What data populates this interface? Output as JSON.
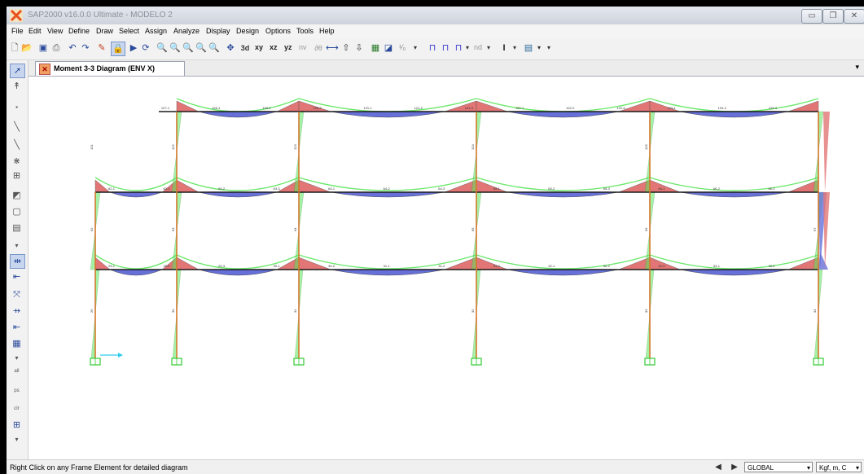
{
  "window": {
    "title": "SAP2000 v16.0.0 Ultimate  - MODELO 2",
    "controls": {
      "minimize": "▭",
      "restore": "❐",
      "close": "✕"
    }
  },
  "menu": [
    "File",
    "Edit",
    "View",
    "Define",
    "Draw",
    "Select",
    "Assign",
    "Analyze",
    "Display",
    "Design",
    "Options",
    "Tools",
    "Help"
  ],
  "toolbar": {
    "view_xy": "xy",
    "view_xz": "xz",
    "view_yz": "yz",
    "view_nv": "nv",
    "fraction": "¹⁄₀",
    "nd": "nd"
  },
  "tab": {
    "label": "Moment 3-3 Diagram  (ENV X)"
  },
  "status": {
    "message": "Right Click on any Frame Element for detailed diagram",
    "coord_system": "GLOBAL",
    "units": "Kgf, m, C"
  },
  "colors": {
    "positive_moment": "#6670d8",
    "negative_moment": "#e27575",
    "envelope_outline": "#5ce65c",
    "frame": "#1a1a1a",
    "column": "#d4782c",
    "support": "#33cc33"
  },
  "diagram": {
    "roof_beam_labels": [
      "127-1",
      "128-1",
      "128-2",
      "128-3",
      "121-1",
      "121-2",
      "121-3",
      "122-1",
      "122-2",
      "122-3",
      "123-1",
      "123-2",
      "123-3"
    ],
    "floor2_beam_labels": [
      "62-1",
      "63-1",
      "63-2",
      "63-3",
      "64-1",
      "64-2",
      "64-3",
      "65-1",
      "65-2",
      "65-3",
      "66-1",
      "66-2",
      "66-3"
    ],
    "floor1_beam_labels": [
      "29-1",
      "29-2",
      "29-3",
      "30-1",
      "30-2",
      "31-1",
      "31-2",
      "31-3",
      "32-1",
      "32-2",
      "32-3",
      "33-1",
      "33-2"
    ],
    "column_labels": [
      "29",
      "30",
      "31",
      "32",
      "33",
      "34",
      "62",
      "63",
      "64",
      "65",
      "66",
      "67",
      "121",
      "122",
      "123",
      "124",
      "125"
    ]
  }
}
